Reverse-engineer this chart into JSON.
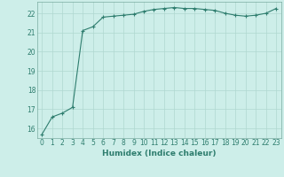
{
  "xlabel": "Humidex (Indice chaleur)",
  "ylabel": "",
  "background_color": "#cdeee9",
  "line_color": "#2e7d6e",
  "marker": "+",
  "x": [
    0,
    1,
    2,
    3,
    4,
    5,
    6,
    7,
    8,
    9,
    10,
    11,
    12,
    13,
    14,
    15,
    16,
    17,
    18,
    19,
    20,
    21,
    22,
    23
  ],
  "y": [
    15.7,
    16.6,
    16.8,
    17.1,
    21.1,
    21.3,
    21.8,
    21.85,
    21.9,
    21.95,
    22.1,
    22.2,
    22.25,
    22.3,
    22.25,
    22.25,
    22.2,
    22.15,
    22.0,
    21.9,
    21.85,
    21.9,
    22.0,
    22.25
  ],
  "ylim": [
    15.5,
    22.6
  ],
  "xlim": [
    -0.5,
    23.5
  ],
  "yticks": [
    16,
    17,
    18,
    19,
    20,
    21,
    22
  ],
  "xticks": [
    0,
    1,
    2,
    3,
    4,
    5,
    6,
    7,
    8,
    9,
    10,
    11,
    12,
    13,
    14,
    15,
    16,
    17,
    18,
    19,
    20,
    21,
    22,
    23
  ],
  "grid_color": "#b0d8d0",
  "tick_fontsize": 5.5,
  "xlabel_fontsize": 6.5,
  "spine_color": "#7aaba0"
}
